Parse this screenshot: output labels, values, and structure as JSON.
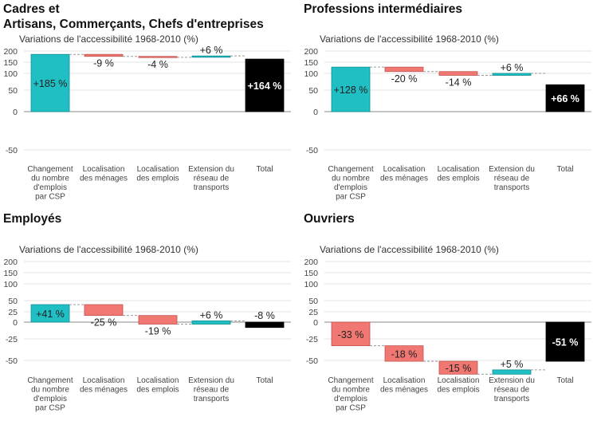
{
  "chart_data": [
    {
      "type": "bar",
      "subtype": "waterfall",
      "title": "Cadres et\nArtisans, Commerçants, Chefs d'entreprises",
      "subtitle": "Variations de l'accessibilité 1968-2010 (%)",
      "categories": [
        "Changement\ndu nombre\nd'emplois\npar CSP",
        "Localisation\ndes ménages",
        "Localisation\ndes emplois",
        "Extension du\nréseau de\ntransports",
        "Total"
      ],
      "values": [
        185,
        -9,
        -4,
        6,
        164
      ],
      "labels": [
        "+185 %",
        "-9 %",
        "-4 %",
        "+6 %",
        "+164 %"
      ],
      "yticks": [
        "200",
        "150",
        "100",
        "50",
        "0",
        "-50"
      ]
    },
    {
      "type": "bar",
      "subtype": "waterfall",
      "title": "Professions intermédiaires",
      "subtitle": "Variations de l'accessibilité 1968-2010 (%)",
      "categories": [
        "Changement\ndu nombre\nd'emplois\npar CSP",
        "Localisation\ndes ménages",
        "Localisation\ndes emplois",
        "Extension du\nréseau de\ntransports",
        "Total"
      ],
      "values": [
        128,
        -20,
        -14,
        6,
        66
      ],
      "labels": [
        "+128 %",
        "-20 %",
        "-14 %",
        "+6 %",
        "+66 %"
      ],
      "yticks": [
        "200",
        "150",
        "100",
        "50",
        "0",
        "-50"
      ]
    },
    {
      "type": "bar",
      "subtype": "waterfall",
      "title": "Employés",
      "subtitle": "Variations de l'accessibilité 1968-2010 (%)",
      "categories": [
        "Changement\ndu nombre\nd'emplois\npar CSP",
        "Localisation\ndes ménages",
        "Localisation\ndes emplois",
        "Extension du\nréseau de\ntransports",
        "Total"
      ],
      "values": [
        41,
        -25,
        -19,
        6,
        -8
      ],
      "labels": [
        "+41 %",
        "-25 %",
        "-19 %",
        "+6 %",
        "-8 %"
      ],
      "yticks": [
        "200",
        "150",
        "100",
        "50",
        "25",
        "0",
        "-25",
        "-50"
      ]
    },
    {
      "type": "bar",
      "subtype": "waterfall",
      "title": "Ouvriers",
      "subtitle": "Variations de l'accessibilité 1968-2010 (%)",
      "categories": [
        "Changement\ndu nombre\nd'emplois\npar CSP",
        "Localisation\ndes ménages",
        "Localisation\ndes emplois",
        "Extension du\nréseau de\ntransports",
        "Total"
      ],
      "values": [
        -33,
        -18,
        -15,
        5,
        -51
      ],
      "labels": [
        "-33 %",
        "-18 %",
        "-15 %",
        "+5 %",
        "-51 %"
      ],
      "yticks": [
        "200",
        "150",
        "100",
        "50",
        "25",
        "0",
        "-25",
        "-50"
      ]
    }
  ],
  "colors": {
    "positive": "#1fbfc4",
    "negative": "#f07772",
    "total": "#000000"
  }
}
